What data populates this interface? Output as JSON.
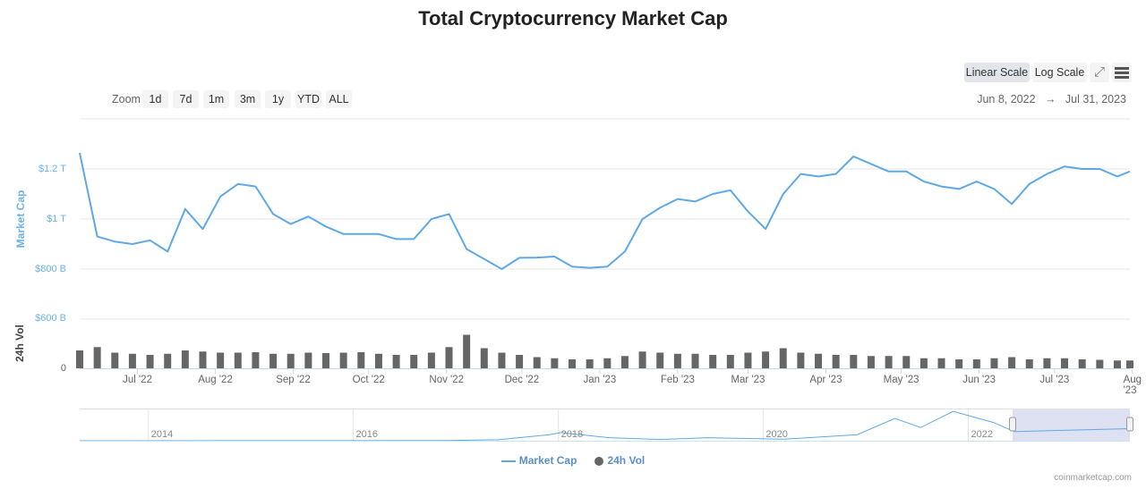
{
  "title": "Total Cryptocurrency Market Cap",
  "toolbar": {
    "zoom_label": "Zoom",
    "zoom_buttons": [
      "1d",
      "7d",
      "1m",
      "3m",
      "1y",
      "YTD",
      "ALL"
    ],
    "linear_scale": "Linear Scale",
    "log_scale": "Log Scale",
    "active_scale": "Linear Scale",
    "fullscreen_icon": "expand-icon",
    "menu_icon": "hamburger-menu-icon"
  },
  "date_range": {
    "from": "Jun 8, 2022",
    "arrow": "→",
    "to": "Jul 31, 2023"
  },
  "colors": {
    "market_cap": "#5ea9e5",
    "volume": "#666666",
    "axis_label": "#6cb3ea",
    "navigator_mask": "#d4d9ee"
  },
  "chart_data": {
    "type": "line",
    "xlim": [
      "2022-06-08",
      "2023-07-31"
    ],
    "x_ticks": [
      "Jul '22",
      "Aug '22",
      "Sep '22",
      "Oct '22",
      "Nov '22",
      "Dec '22",
      "Jan '23",
      "Feb '23",
      "Mar '23",
      "Apr '23",
      "May '23",
      "Jun '23",
      "Jul '23",
      "Aug '23"
    ],
    "x_tick_dates": [
      "2022-07-01",
      "2022-08-01",
      "2022-09-01",
      "2022-10-01",
      "2022-11-01",
      "2022-12-01",
      "2023-01-01",
      "2023-02-01",
      "2023-03-01",
      "2023-04-01",
      "2023-05-01",
      "2023-06-01",
      "2023-07-01",
      "2023-08-01"
    ],
    "grid": true,
    "legend_position": "bottom",
    "series": [
      {
        "name": "Market Cap",
        "unit": "trillion USD",
        "axis_label": "Market Cap",
        "ylim": [
          0.6,
          1.4
        ],
        "y_ticks": [
          {
            "value": 0.6,
            "label": "$600 B"
          },
          {
            "value": 0.8,
            "label": "$800 B"
          },
          {
            "value": 1.0,
            "label": "$1 T"
          },
          {
            "value": 1.2,
            "label": "$1.2 T"
          }
        ],
        "dates": [
          "2022-06-08",
          "2022-06-15",
          "2022-06-22",
          "2022-06-29",
          "2022-07-06",
          "2022-07-13",
          "2022-07-20",
          "2022-07-27",
          "2022-08-03",
          "2022-08-10",
          "2022-08-17",
          "2022-08-24",
          "2022-08-31",
          "2022-09-07",
          "2022-09-14",
          "2022-09-21",
          "2022-09-28",
          "2022-10-05",
          "2022-10-12",
          "2022-10-19",
          "2022-10-26",
          "2022-11-02",
          "2022-11-09",
          "2022-11-16",
          "2022-11-23",
          "2022-11-30",
          "2022-12-07",
          "2022-12-14",
          "2022-12-21",
          "2022-12-28",
          "2023-01-04",
          "2023-01-11",
          "2023-01-18",
          "2023-01-25",
          "2023-02-01",
          "2023-02-08",
          "2023-02-15",
          "2023-02-22",
          "2023-03-01",
          "2023-03-08",
          "2023-03-15",
          "2023-03-22",
          "2023-03-29",
          "2023-04-05",
          "2023-04-12",
          "2023-04-19",
          "2023-04-26",
          "2023-05-03",
          "2023-05-10",
          "2023-05-17",
          "2023-05-24",
          "2023-05-31",
          "2023-06-07",
          "2023-06-14",
          "2023-06-21",
          "2023-06-28",
          "2023-07-05",
          "2023-07-12",
          "2023-07-19",
          "2023-07-26",
          "2023-07-31"
        ],
        "values": [
          1.264,
          0.93,
          0.91,
          0.9,
          0.915,
          0.87,
          1.04,
          0.96,
          1.09,
          1.14,
          1.13,
          1.02,
          0.98,
          1.01,
          0.97,
          0.94,
          0.94,
          0.94,
          0.92,
          0.92,
          1.0,
          1.02,
          0.88,
          0.84,
          0.8,
          0.845,
          0.846,
          0.85,
          0.81,
          0.805,
          0.81,
          0.87,
          1.0,
          1.045,
          1.08,
          1.07,
          1.1,
          1.115,
          1.03,
          0.96,
          1.1,
          1.18,
          1.17,
          1.18,
          1.25,
          1.22,
          1.19,
          1.19,
          1.15,
          1.13,
          1.12,
          1.15,
          1.12,
          1.06,
          1.14,
          1.18,
          1.21,
          1.2,
          1.2,
          1.17,
          1.19
        ]
      },
      {
        "name": "24h Vol",
        "unit": "billion USD",
        "axis_label": "24h Vol",
        "ylim": [
          0,
          220
        ],
        "y_ticks": [
          {
            "value": 0,
            "label": "0"
          }
        ],
        "values": [
          80,
          95,
          70,
          65,
          60,
          65,
          80,
          75,
          70,
          70,
          72,
          65,
          65,
          70,
          68,
          70,
          72,
          65,
          60,
          60,
          70,
          95,
          150,
          90,
          70,
          60,
          50,
          45,
          40,
          40,
          45,
          55,
          75,
          70,
          65,
          65,
          60,
          60,
          70,
          75,
          90,
          70,
          65,
          60,
          60,
          55,
          55,
          55,
          45,
          45,
          40,
          40,
          45,
          50,
          40,
          45,
          45,
          40,
          38,
          35,
          35
        ]
      }
    ],
    "navigator": {
      "x_ticks": [
        "2014",
        "2016",
        "2018",
        "2020",
        "2022"
      ],
      "dates": [
        "2013-05-01",
        "2016-12-01",
        "2017-06-01",
        "2017-12-01",
        "2018-01-10",
        "2018-07-01",
        "2019-01-01",
        "2019-06-15",
        "2020-03-15",
        "2020-12-01",
        "2021-04-15",
        "2021-07-15",
        "2021-11-08",
        "2022-04-01",
        "2022-06-15",
        "2023-07-31"
      ],
      "values": [
        0.002,
        0.02,
        0.1,
        0.6,
        0.8,
        0.3,
        0.12,
        0.3,
        0.15,
        0.6,
        2.2,
        1.3,
        2.9,
        1.8,
        0.9,
        1.19
      ],
      "selected_range": [
        "2022-06-08",
        "2023-07-31"
      ]
    }
  },
  "legend": [
    {
      "name": "Market Cap",
      "marker": "line"
    },
    {
      "name": "24h Vol",
      "marker": "circle"
    }
  ],
  "credit": "coinmarketcap.com"
}
